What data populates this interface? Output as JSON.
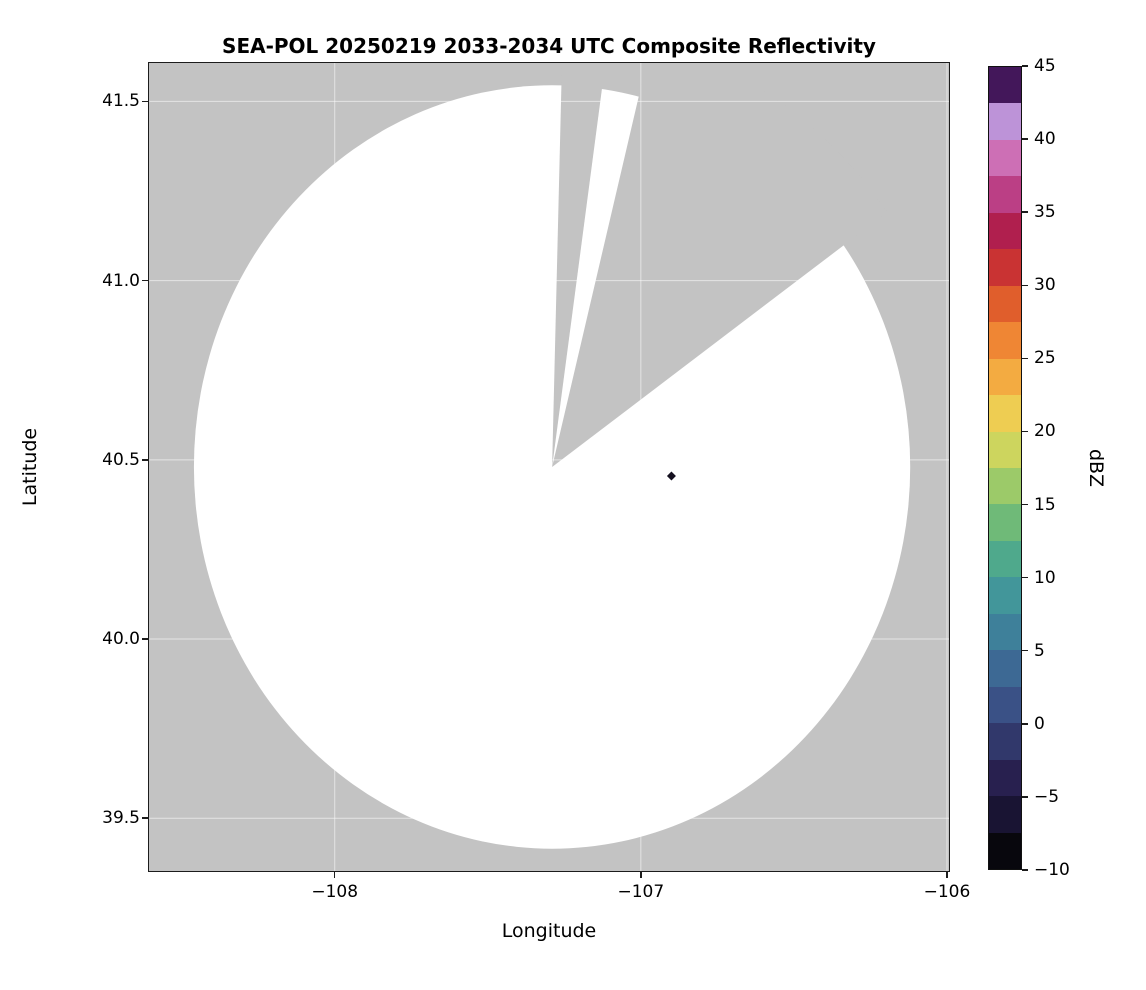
{
  "figure": {
    "title": "SEA-POL 20250219 2033-2034 UTC Composite Reflectivity",
    "xlabel": "Longitude",
    "ylabel": "Latitude",
    "colorbar_label": "dBZ"
  },
  "chart_data": {
    "type": "heatmap",
    "subtype": "radar-ppi-composite-reflectivity",
    "title": "SEA-POL 20250219 2033-2034 UTC Composite Reflectivity",
    "xlabel": "Longitude",
    "ylabel": "Latitude",
    "xlim": [
      -108.61,
      -105.99
    ],
    "ylim": [
      39.35,
      41.61
    ],
    "grid": true,
    "grid_color": "rgba(255,255,255,0.55)",
    "plot_background_color": "#c3c3c3",
    "x_ticks": {
      "values": [
        -108,
        -107,
        -106
      ],
      "labels": [
        "−108",
        "−107",
        "−106"
      ]
    },
    "y_ticks": {
      "values": [
        41.5,
        41.0,
        40.5,
        40.0,
        39.5
      ],
      "labels": [
        "41.5",
        "41.0",
        "40.5",
        "40.0",
        "39.5"
      ]
    },
    "radar_coverage": {
      "center_lon": -107.29,
      "center_lat": 40.48,
      "radius_deg_lon": 1.17,
      "radius_deg_lat": 1.065,
      "scanned_fill_color": "#ffffff",
      "missing_sectors_azimuth_deg": [
        [
          1.5,
          8.0
        ],
        [
          14.0,
          54.5
        ]
      ]
    },
    "echoes": [
      {
        "lon": -106.9,
        "lat": 40.455,
        "color": "#14101f"
      }
    ],
    "colorbar": {
      "label": "dBZ",
      "min": -10,
      "max": 45,
      "tick_values": [
        45,
        40,
        35,
        30,
        25,
        20,
        15,
        10,
        5,
        0,
        -5,
        -10
      ],
      "tick_labels": [
        "45",
        "40",
        "35",
        "30",
        "25",
        "20",
        "15",
        "10",
        "5",
        "0",
        "−5",
        "−10"
      ],
      "band_colors_bottom_to_top": [
        "#08070d",
        "#191433",
        "#28204f",
        "#31386b",
        "#3a5186",
        "#3d6994",
        "#3e809a",
        "#42969a",
        "#4fa98c",
        "#6fba78",
        "#9cca69",
        "#cdd55e",
        "#eecd52",
        "#f3ab41",
        "#ef8634",
        "#e05e2c",
        "#c93333",
        "#b01f4e",
        "#bb3f85",
        "#cd6fb5",
        "#bd93d8",
        "#43175a"
      ]
    }
  }
}
